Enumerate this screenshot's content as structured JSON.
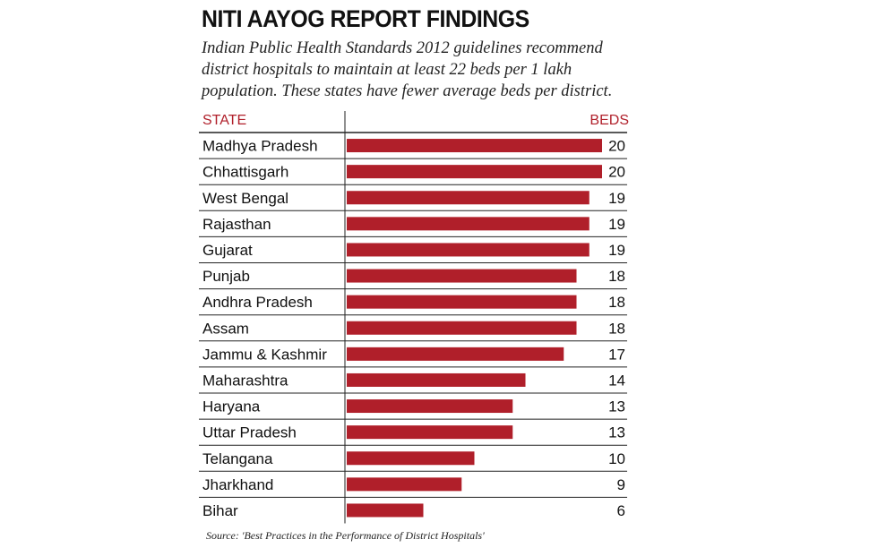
{
  "title": "NITI AAYOG REPORT FINDINGS",
  "subtitle": "Indian Public Health Standards 2012 guidelines recommend district hospitals to maintain at least 22 beds per 1 lakh population. These states have fewer average beds per district.",
  "source": "Source: 'Best Practices in the Performance of District Hospitals'",
  "colors": {
    "bar": "#b01f2a",
    "header": "#b01f2a",
    "rule": "#222222"
  },
  "chart_data": {
    "type": "bar",
    "orientation": "horizontal",
    "col_header_category": "STATE",
    "col_header_value": "BEDS",
    "categories": [
      "Madhya Pradesh",
      "Chhattisgarh",
      "West Bengal",
      "Rajasthan",
      "Gujarat",
      "Punjab",
      "Andhra Pradesh",
      "Assam",
      "Jammu & Kashmir",
      "Maharashtra",
      "Haryana",
      "Uttar Pradesh",
      "Telangana",
      "Jharkhand",
      "Bihar"
    ],
    "values": [
      20,
      20,
      19,
      19,
      19,
      18,
      18,
      18,
      17,
      14,
      13,
      13,
      10,
      9,
      6
    ],
    "value_labels": [
      "20",
      "20",
      "19",
      "19",
      "19",
      "18",
      "18",
      "18",
      "17",
      "14",
      "13",
      "13",
      "10",
      "9",
      "6"
    ],
    "xlim": [
      0,
      20
    ],
    "grid": false,
    "legend": "none"
  }
}
